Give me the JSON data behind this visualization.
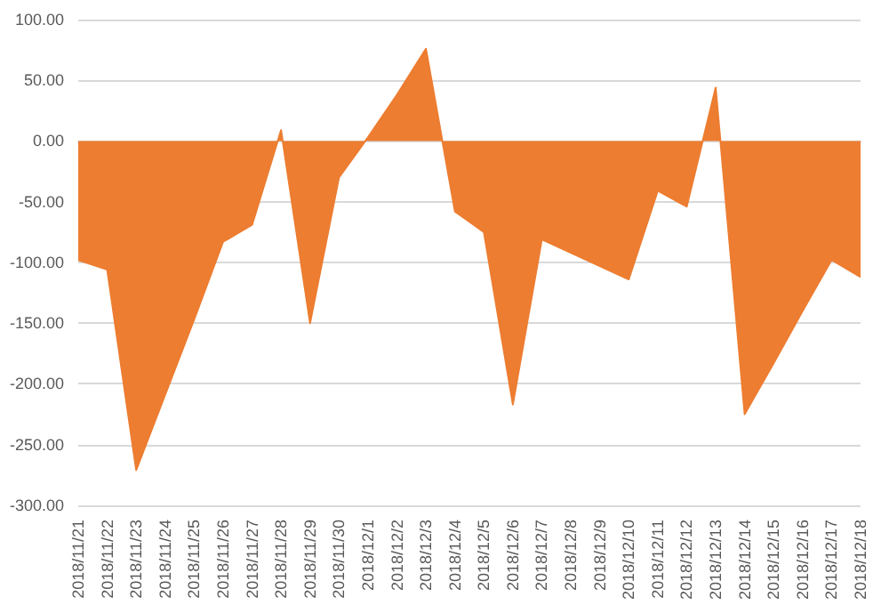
{
  "chart_data": {
    "type": "area",
    "categories": [
      "2018/11/21",
      "2018/11/22",
      "2018/11/23",
      "2018/11/24",
      "2018/11/25",
      "2018/11/26",
      "2018/11/27",
      "2018/11/28",
      "2018/11/29",
      "2018/11/30",
      "2018/12/1",
      "2018/12/2",
      "2018/12/3",
      "2018/12/4",
      "2018/12/5",
      "2018/12/6",
      "2018/12/7",
      "2018/12/8",
      "2018/12/9",
      "2018/12/10",
      "2018/12/11",
      "2018/12/12",
      "2018/12/13",
      "2018/12/14",
      "2018/12/15",
      "2018/12/16",
      "2018/12/17",
      "2018/12/18"
    ],
    "values": [
      -98,
      -106,
      -271,
      -209,
      -147,
      -83,
      -69,
      9,
      -150,
      -30,
      3,
      38,
      76,
      -58,
      -75,
      -217,
      -81,
      -92,
      -103,
      -114,
      -41,
      -54,
      44,
      -225,
      -183,
      -140,
      -98,
      -112
    ],
    "color": "#ed7d31",
    "ylim": [
      -300,
      100
    ],
    "yticks": [
      {
        "value": -300,
        "label": "-300.00"
      },
      {
        "value": -250,
        "label": "-250.00"
      },
      {
        "value": -200,
        "label": "-200.00"
      },
      {
        "value": -150,
        "label": "-150.00"
      },
      {
        "value": -100,
        "label": "-100.00"
      },
      {
        "value": -50,
        "label": "-50.00"
      },
      {
        "value": 0,
        "label": "0.00"
      },
      {
        "value": 50,
        "label": "50.00"
      },
      {
        "value": 100,
        "label": "100.00"
      }
    ],
    "grid": "y"
  }
}
